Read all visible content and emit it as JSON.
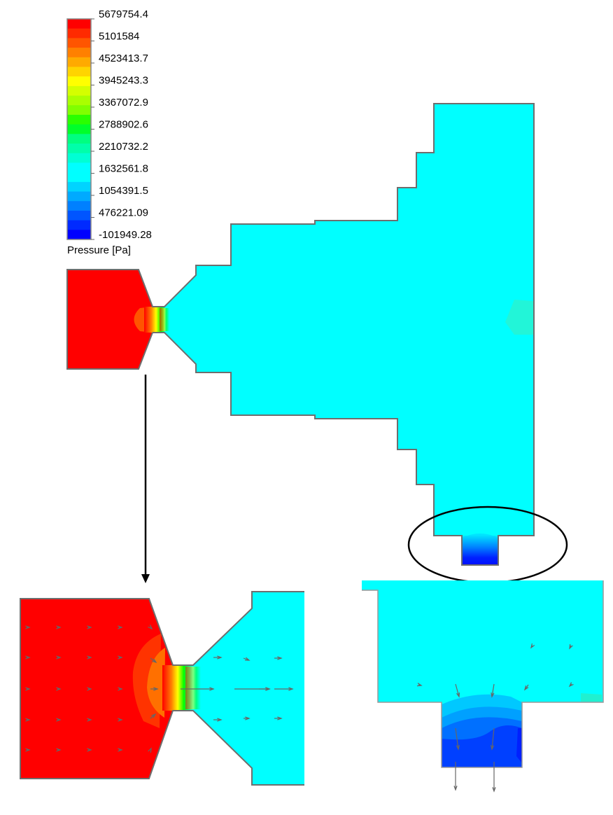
{
  "legend": {
    "title": "Pressure [Pa]",
    "ticks": [
      "5679754.4",
      "5101584",
      "4523413.7",
      "3945243.3",
      "3367072.9",
      "2788902.6",
      "2210732.2",
      "1632561.8",
      "1054391.5",
      "476221.09",
      "-101949.28"
    ],
    "colors": [
      "#ff0000",
      "#ff2a00",
      "#ff5500",
      "#ff8000",
      "#ffaa00",
      "#ffd400",
      "#ffff00",
      "#d4ff00",
      "#aaff00",
      "#80ff00",
      "#2aff00",
      "#00ff2a",
      "#00ff80",
      "#00ffaa",
      "#00ffd4",
      "#00ffff",
      "#00ffff",
      "#00d4ff",
      "#00aaff",
      "#0080ff",
      "#0055ff",
      "#002aff",
      "#0000ff"
    ]
  },
  "field_colors": {
    "high": "#ff0000",
    "mid": "#00ff00",
    "ambient": "#00ffff",
    "low": "#0000ff",
    "wall": "#6e6e6e",
    "annotation": "#000000"
  }
}
